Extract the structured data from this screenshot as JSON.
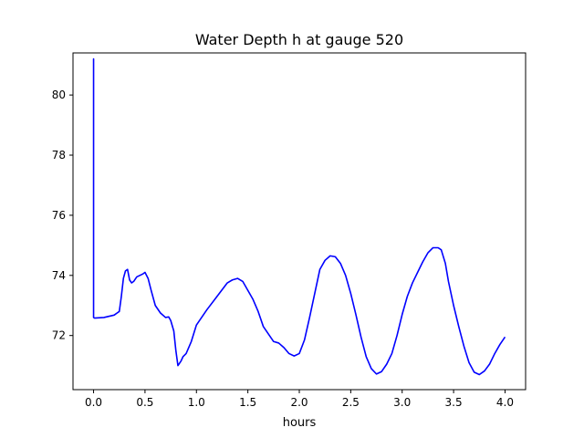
{
  "chart_data": {
    "type": "line",
    "title": "Water Depth h at gauge 520",
    "xlabel": "hours",
    "ylabel": "",
    "xlim": [
      -0.2,
      4.2
    ],
    "ylim": [
      70.2,
      81.4
    ],
    "xticks": [
      0.0,
      0.5,
      1.0,
      1.5,
      2.0,
      2.5,
      3.0,
      3.5,
      4.0
    ],
    "xtick_labels": [
      "0.0",
      "0.5",
      "1.0",
      "1.5",
      "2.0",
      "2.5",
      "3.0",
      "3.5",
      "4.0"
    ],
    "yticks": [
      72,
      74,
      76,
      78,
      80
    ],
    "ytick_labels": [
      "72",
      "74",
      "76",
      "78",
      "80"
    ],
    "grid": false,
    "legend": "none",
    "series": [
      {
        "name": "",
        "color": "#0000ff",
        "x": [
          0.0,
          0.0,
          0.0,
          0.01,
          0.1,
          0.2,
          0.25,
          0.27,
          0.29,
          0.31,
          0.33,
          0.35,
          0.37,
          0.39,
          0.42,
          0.45,
          0.48,
          0.5,
          0.53,
          0.56,
          0.6,
          0.65,
          0.7,
          0.73,
          0.75,
          0.78,
          0.8,
          0.82,
          0.85,
          0.87,
          0.9,
          0.95,
          1.0,
          1.05,
          1.1,
          1.2,
          1.3,
          1.35,
          1.4,
          1.45,
          1.5,
          1.55,
          1.6,
          1.65,
          1.7,
          1.75,
          1.8,
          1.85,
          1.9,
          1.95,
          2.0,
          2.05,
          2.1,
          2.2,
          2.25,
          2.3,
          2.35,
          2.4,
          2.45,
          2.5,
          2.55,
          2.6,
          2.65,
          2.7,
          2.75,
          2.8,
          2.85,
          2.9,
          2.95,
          3.0,
          3.05,
          3.1,
          3.15,
          3.2,
          3.25,
          3.3,
          3.35,
          3.38,
          3.42,
          3.45,
          3.5,
          3.55,
          3.6,
          3.65,
          3.7,
          3.75,
          3.8,
          3.85,
          3.9,
          3.95,
          4.0
        ],
        "y": [
          81.1,
          81.2,
          72.6,
          72.58,
          72.6,
          72.68,
          72.8,
          73.3,
          73.9,
          74.15,
          74.2,
          73.85,
          73.75,
          73.8,
          73.95,
          74.0,
          74.05,
          74.1,
          73.9,
          73.5,
          73.0,
          72.75,
          72.6,
          72.62,
          72.5,
          72.15,
          71.5,
          71.0,
          71.15,
          71.3,
          71.4,
          71.8,
          72.35,
          72.6,
          72.85,
          73.3,
          73.75,
          73.85,
          73.9,
          73.8,
          73.5,
          73.2,
          72.8,
          72.3,
          72.05,
          71.8,
          71.75,
          71.6,
          71.4,
          71.32,
          71.4,
          71.85,
          72.6,
          74.2,
          74.5,
          74.65,
          74.62,
          74.4,
          74.0,
          73.4,
          72.7,
          71.95,
          71.3,
          70.9,
          70.72,
          70.8,
          71.05,
          71.4,
          72.0,
          72.7,
          73.3,
          73.75,
          74.1,
          74.45,
          74.75,
          74.92,
          74.92,
          74.85,
          74.4,
          73.8,
          73.0,
          72.3,
          71.65,
          71.1,
          70.78,
          70.7,
          70.82,
          71.05,
          71.4,
          71.7,
          71.95
        ]
      }
    ]
  }
}
